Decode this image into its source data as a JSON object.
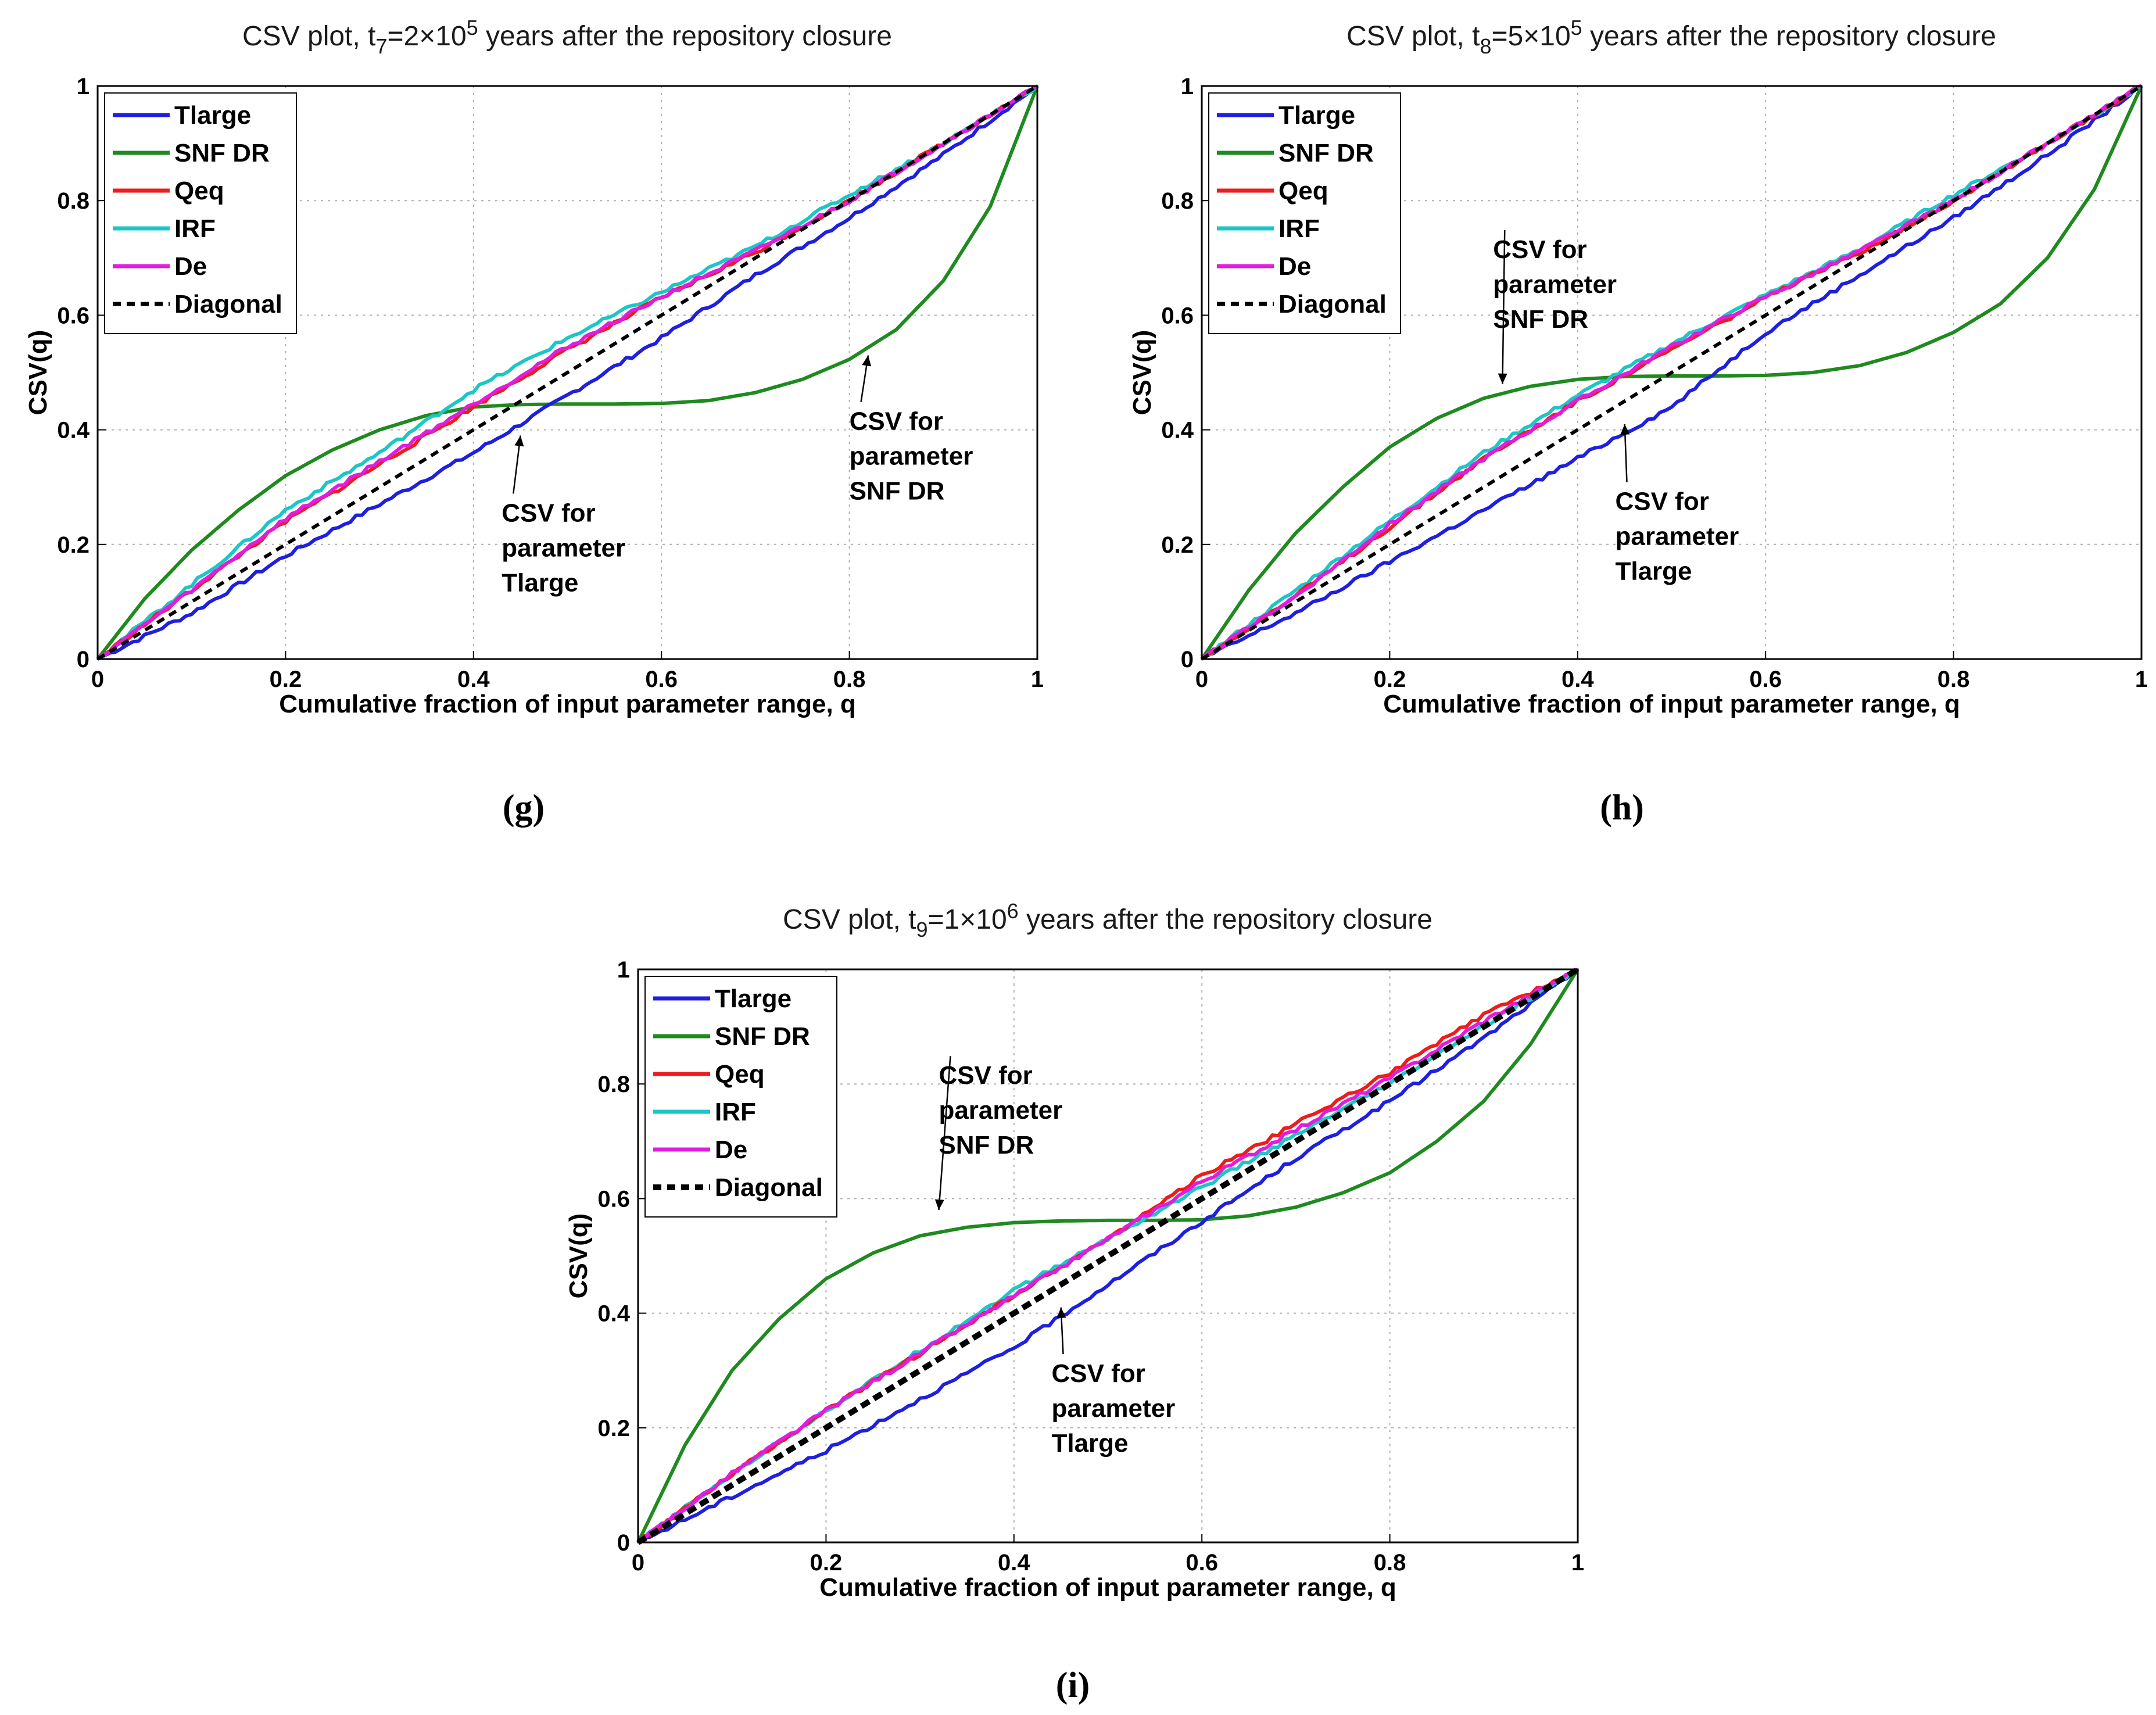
{
  "chart_data": [
    {
      "type": "line",
      "panel_label": "(g)",
      "title": {
        "prefix": "CSV plot, t",
        "sub": "7",
        "mid": "=2×10",
        "sup": "5",
        "suffix": " years after the repository closure"
      },
      "xlabel": "Cumulative fraction of input parameter range, q",
      "ylabel": "CSV(q)",
      "xlim": [
        0,
        1
      ],
      "ylim": [
        0,
        1
      ],
      "xticks": [
        "0",
        "0.2",
        "0.4",
        "0.6",
        "0.8",
        "1"
      ],
      "yticks": [
        "0",
        "0.2",
        "0.4",
        "0.6",
        "0.8",
        "1"
      ],
      "grid": true,
      "legend_position": "top-left",
      "series": [
        {
          "name": "Tlarge",
          "color": "#1f1fe0",
          "x": [
            0,
            0.1,
            0.2,
            0.3,
            0.4,
            0.5,
            0.6,
            0.7,
            0.8,
            0.9,
            1
          ],
          "values": [
            0,
            0.08,
            0.18,
            0.27,
            0.36,
            0.46,
            0.56,
            0.67,
            0.77,
            0.88,
            1
          ]
        },
        {
          "name": "SNF DR",
          "color": "#1f8a1f",
          "x": [
            0,
            0.05,
            0.1,
            0.15,
            0.2,
            0.25,
            0.3,
            0.35,
            0.4,
            0.45,
            0.5,
            0.55,
            0.6,
            0.65,
            0.7,
            0.75,
            0.8,
            0.85,
            0.9,
            0.95,
            1
          ],
          "values": [
            0,
            0.105,
            0.19,
            0.26,
            0.32,
            0.365,
            0.4,
            0.425,
            0.44,
            0.444,
            0.445,
            0.445,
            0.446,
            0.451,
            0.465,
            0.488,
            0.523,
            0.575,
            0.66,
            0.79,
            1
          ]
        },
        {
          "name": "Qeq",
          "color": "#ee1c1c",
          "x": [
            0,
            0.1,
            0.2,
            0.3,
            0.4,
            0.5,
            0.6,
            0.7,
            0.8,
            0.9,
            1
          ],
          "values": [
            0,
            0.12,
            0.24,
            0.34,
            0.44,
            0.54,
            0.63,
            0.71,
            0.8,
            0.9,
            1
          ]
        },
        {
          "name": "IRF",
          "color": "#1cc6c6",
          "x": [
            0,
            0.1,
            0.2,
            0.3,
            0.4,
            0.5,
            0.6,
            0.7,
            0.8,
            0.9,
            1
          ],
          "values": [
            0,
            0.13,
            0.26,
            0.36,
            0.47,
            0.56,
            0.64,
            0.72,
            0.81,
            0.9,
            1
          ]
        },
        {
          "name": "De",
          "color": "#e01ce0",
          "x": [
            0,
            0.1,
            0.2,
            0.3,
            0.4,
            0.5,
            0.6,
            0.7,
            0.8,
            0.9,
            1
          ],
          "values": [
            0,
            0.12,
            0.245,
            0.345,
            0.445,
            0.545,
            0.632,
            0.712,
            0.8,
            0.9,
            1
          ]
        },
        {
          "name": "Diagonal",
          "color": "#000000",
          "dashed": true,
          "x": [
            0,
            1
          ],
          "values": [
            0,
            1
          ]
        }
      ],
      "annotations": [
        {
          "lines": [
            "CSV for",
            "parameter",
            "SNF DR"
          ],
          "text_at": [
            0.8,
            0.4
          ],
          "arrow_to": [
            0.82,
            0.53
          ]
        },
        {
          "lines": [
            "CSV for",
            "parameter",
            "Tlarge"
          ],
          "text_at": [
            0.43,
            0.24
          ],
          "arrow_to": [
            0.45,
            0.39
          ]
        }
      ]
    },
    {
      "type": "line",
      "panel_label": "(h)",
      "title": {
        "prefix": "CSV plot, t",
        "sub": "8",
        "mid": "=5×10",
        "sup": "5",
        "suffix": " years after the repository closure"
      },
      "xlabel": "Cumulative fraction of input parameter range, q",
      "ylabel": "CSV(q)",
      "xlim": [
        0,
        1
      ],
      "ylim": [
        0,
        1
      ],
      "xticks": [
        "0",
        "0.2",
        "0.4",
        "0.6",
        "0.8",
        "1"
      ],
      "yticks": [
        "0",
        "0.2",
        "0.4",
        "0.6",
        "0.8",
        "1"
      ],
      "grid": true,
      "legend_position": "top-left",
      "series": [
        {
          "name": "Tlarge",
          "color": "#1f1fe0",
          "x": [
            0,
            0.1,
            0.2,
            0.3,
            0.4,
            0.5,
            0.6,
            0.7,
            0.8,
            0.9,
            1
          ],
          "values": [
            0,
            0.08,
            0.17,
            0.26,
            0.35,
            0.44,
            0.57,
            0.67,
            0.77,
            0.88,
            1
          ]
        },
        {
          "name": "SNF DR",
          "color": "#1f8a1f",
          "x": [
            0,
            0.05,
            0.1,
            0.15,
            0.2,
            0.25,
            0.3,
            0.35,
            0.4,
            0.45,
            0.5,
            0.55,
            0.6,
            0.65,
            0.7,
            0.75,
            0.8,
            0.85,
            0.9,
            0.95,
            1
          ],
          "values": [
            0,
            0.12,
            0.22,
            0.3,
            0.37,
            0.42,
            0.455,
            0.476,
            0.488,
            0.493,
            0.494,
            0.494,
            0.495,
            0.5,
            0.512,
            0.535,
            0.57,
            0.62,
            0.7,
            0.82,
            1
          ]
        },
        {
          "name": "Qeq",
          "color": "#ee1c1c",
          "x": [
            0,
            0.1,
            0.2,
            0.3,
            0.4,
            0.5,
            0.6,
            0.7,
            0.8,
            0.9,
            1
          ],
          "values": [
            0,
            0.11,
            0.23,
            0.35,
            0.45,
            0.54,
            0.63,
            0.71,
            0.8,
            0.9,
            1
          ]
        },
        {
          "name": "IRF",
          "color": "#1cc6c6",
          "x": [
            0,
            0.1,
            0.2,
            0.3,
            0.4,
            0.5,
            0.6,
            0.7,
            0.8,
            0.9,
            1
          ],
          "values": [
            0,
            0.12,
            0.24,
            0.36,
            0.46,
            0.55,
            0.635,
            0.715,
            0.81,
            0.9,
            1
          ]
        },
        {
          "name": "De",
          "color": "#e01ce0",
          "x": [
            0,
            0.1,
            0.2,
            0.3,
            0.4,
            0.5,
            0.6,
            0.7,
            0.8,
            0.9,
            1
          ],
          "values": [
            0,
            0.11,
            0.235,
            0.35,
            0.45,
            0.545,
            0.632,
            0.712,
            0.8,
            0.9,
            1
          ]
        },
        {
          "name": "Diagonal",
          "color": "#000000",
          "dashed": true,
          "x": [
            0,
            1
          ],
          "values": [
            0,
            1
          ]
        }
      ],
      "annotations": [
        {
          "lines": [
            "CSV for",
            "parameter",
            "SNF DR"
          ],
          "text_at": [
            0.31,
            0.7
          ],
          "arrow_to": [
            0.32,
            0.48
          ]
        },
        {
          "lines": [
            "CSV for",
            "parameter",
            "Tlarge"
          ],
          "text_at": [
            0.44,
            0.26
          ],
          "arrow_to": [
            0.45,
            0.41
          ]
        }
      ]
    },
    {
      "type": "line",
      "panel_label": "(i)",
      "title": {
        "prefix": "CSV plot, t",
        "sub": "9",
        "mid": "=1×10",
        "sup": "6",
        "suffix": " years after the repository closure"
      },
      "xlabel": "Cumulative fraction of input parameter range, q",
      "ylabel": "CSV(q)",
      "xlim": [
        0,
        1
      ],
      "ylim": [
        0,
        1
      ],
      "xticks": [
        "0",
        "0.2",
        "0.4",
        "0.6",
        "0.8",
        "1"
      ],
      "yticks": [
        "0",
        "0.2",
        "0.4",
        "0.6",
        "0.8",
        "1"
      ],
      "grid": true,
      "legend_position": "top-left",
      "series": [
        {
          "name": "Tlarge",
          "color": "#1f1fe0",
          "x": [
            0,
            0.1,
            0.2,
            0.3,
            0.4,
            0.5,
            0.6,
            0.7,
            0.8,
            0.9,
            1
          ],
          "values": [
            0,
            0.08,
            0.16,
            0.25,
            0.34,
            0.45,
            0.56,
            0.67,
            0.77,
            0.88,
            1
          ]
        },
        {
          "name": "SNF DR",
          "color": "#1f8a1f",
          "x": [
            0,
            0.05,
            0.1,
            0.15,
            0.2,
            0.25,
            0.3,
            0.35,
            0.4,
            0.45,
            0.5,
            0.55,
            0.6,
            0.65,
            0.7,
            0.75,
            0.8,
            0.85,
            0.9,
            0.95,
            1
          ],
          "values": [
            0,
            0.17,
            0.3,
            0.39,
            0.46,
            0.505,
            0.535,
            0.55,
            0.558,
            0.561,
            0.562,
            0.562,
            0.563,
            0.57,
            0.585,
            0.61,
            0.645,
            0.7,
            0.77,
            0.87,
            1
          ]
        },
        {
          "name": "Qeq",
          "color": "#ee1c1c",
          "x": [
            0,
            0.1,
            0.2,
            0.3,
            0.4,
            0.5,
            0.6,
            0.7,
            0.8,
            0.9,
            1
          ],
          "values": [
            0,
            0.12,
            0.23,
            0.33,
            0.43,
            0.53,
            0.64,
            0.73,
            0.82,
            0.92,
            1
          ]
        },
        {
          "name": "IRF",
          "color": "#1cc6c6",
          "x": [
            0,
            0.1,
            0.2,
            0.3,
            0.4,
            0.5,
            0.6,
            0.7,
            0.8,
            0.9,
            1
          ],
          "values": [
            0,
            0.12,
            0.23,
            0.335,
            0.44,
            0.53,
            0.62,
            0.71,
            0.8,
            0.9,
            1
          ]
        },
        {
          "name": "De",
          "color": "#e01ce0",
          "x": [
            0,
            0.1,
            0.2,
            0.3,
            0.4,
            0.5,
            0.6,
            0.7,
            0.8,
            0.9,
            1
          ],
          "values": [
            0,
            0.12,
            0.23,
            0.33,
            0.43,
            0.53,
            0.63,
            0.72,
            0.81,
            0.91,
            1
          ]
        },
        {
          "name": "Diagonal",
          "color": "#000000",
          "dashed": true,
          "x": [
            0,
            1
          ],
          "values": [
            0,
            1
          ]
        }
      ],
      "annotations": [
        {
          "lines": [
            "CSV for",
            "parameter",
            "SNF DR"
          ],
          "text_at": [
            0.32,
            0.8
          ],
          "arrow_to": [
            0.32,
            0.58
          ]
        },
        {
          "lines": [
            "CSV for",
            "parameter",
            "Tlarge"
          ],
          "text_at": [
            0.44,
            0.28
          ],
          "arrow_to": [
            0.45,
            0.41
          ]
        }
      ]
    }
  ]
}
